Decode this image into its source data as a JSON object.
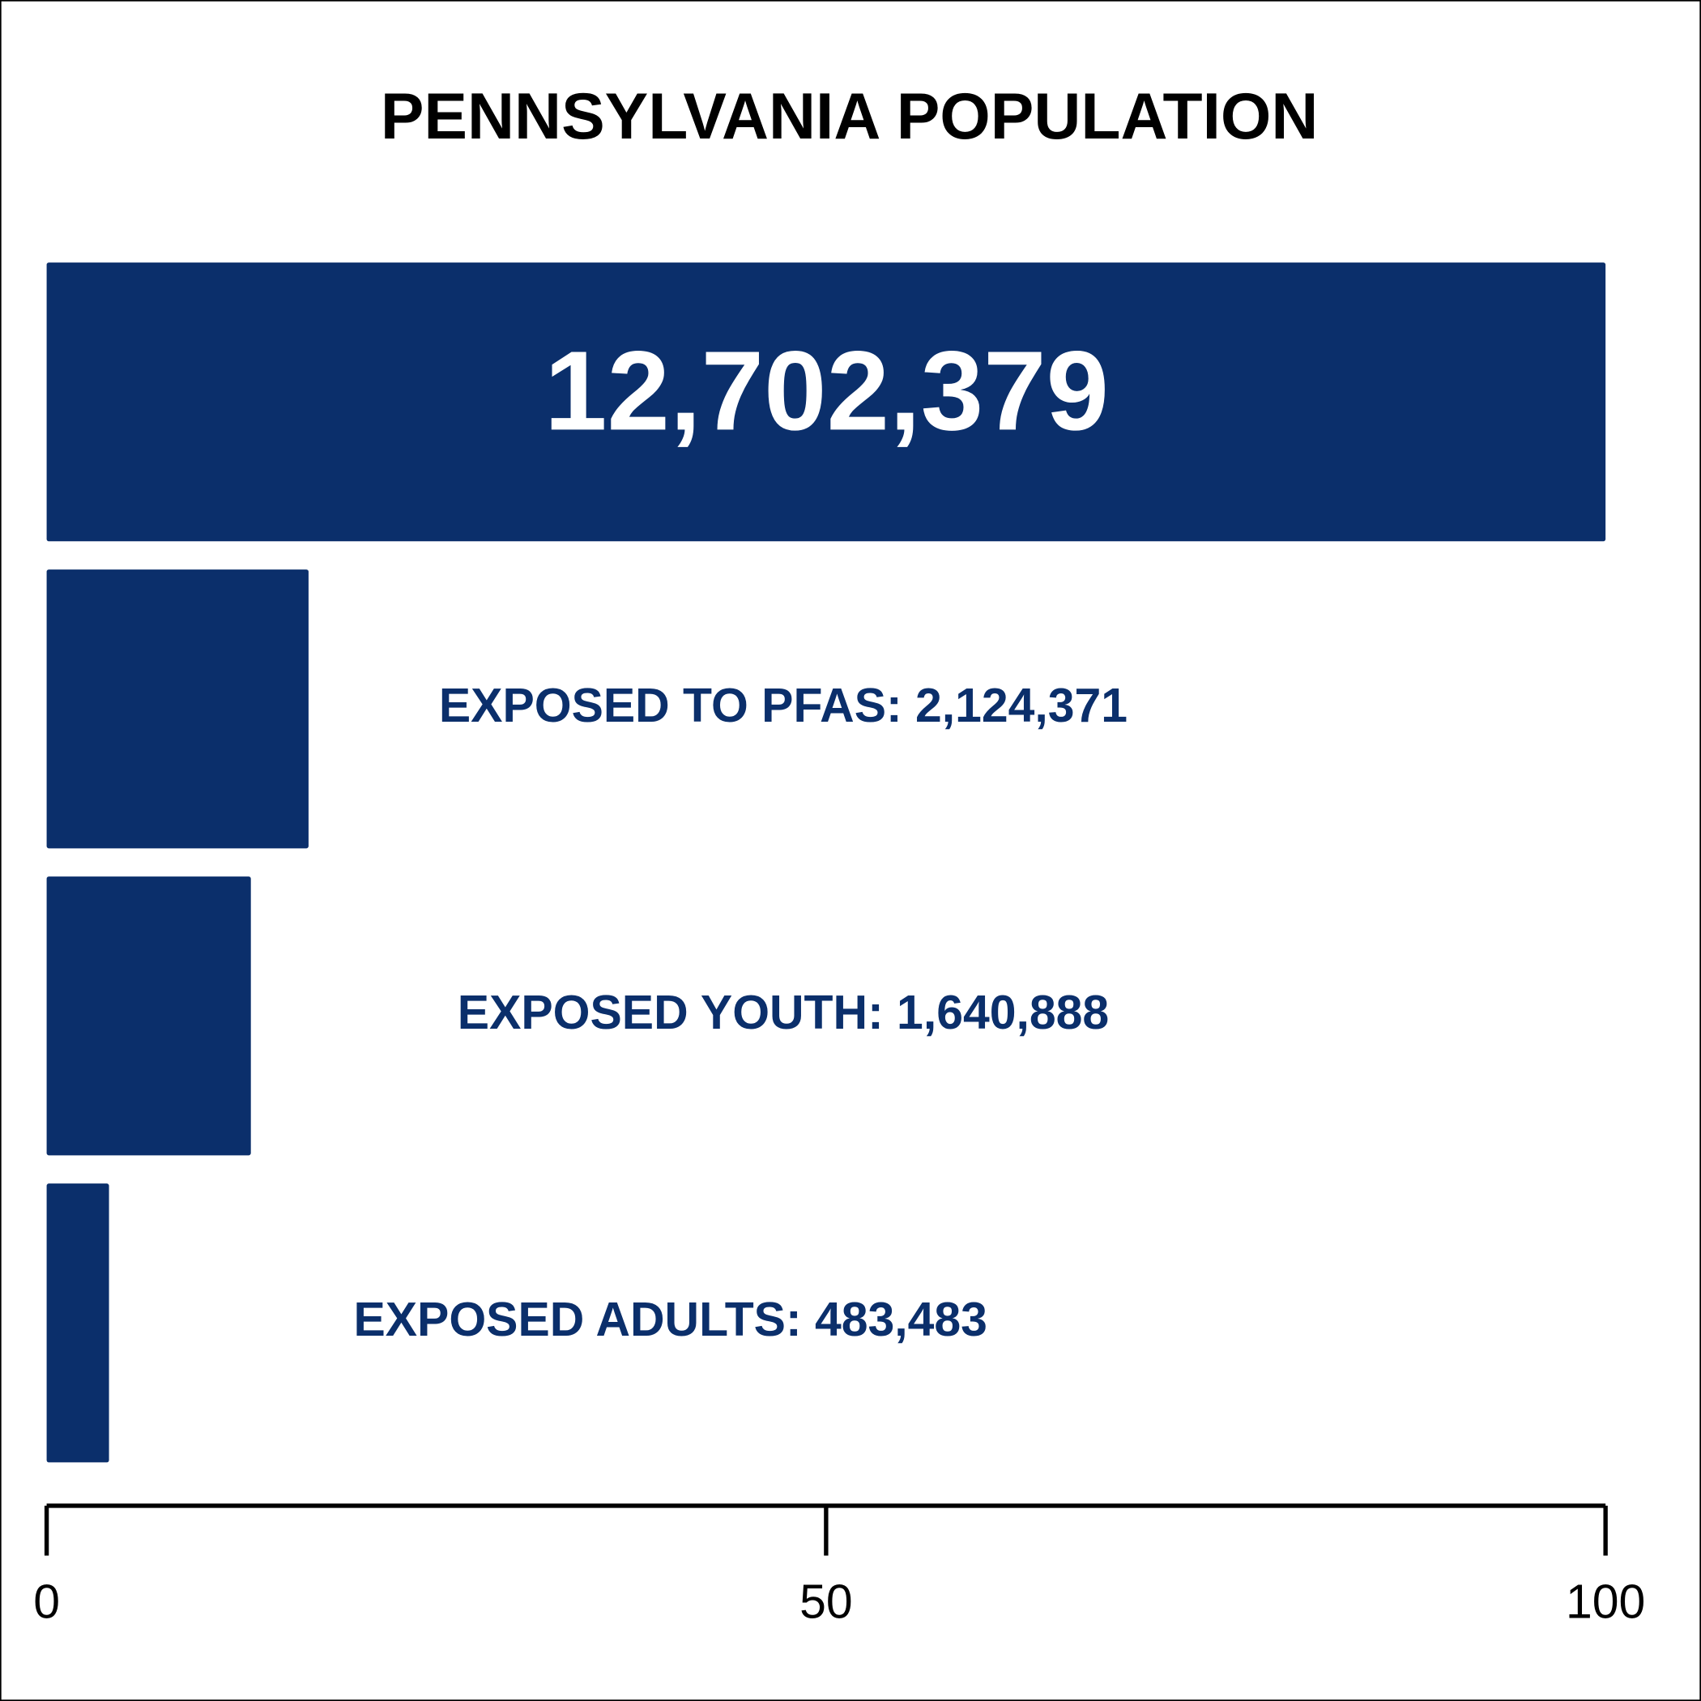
{
  "chart_data": {
    "type": "hbar",
    "title": "PENNSYLVANIA POPULATION",
    "values": [
      100,
      16.8,
      13.1,
      4.0
    ],
    "annotations": [
      "12,702,379",
      "EXPOSED TO PFAS: 2,124,371",
      "EXPOSED YOUTH: 1,640,888",
      "EXPOSED ADULTS: 483,483"
    ],
    "color": "#0b2f6b",
    "xlim": [
      0,
      100
    ],
    "xticks": [
      0,
      50,
      100
    ],
    "grid": false
  }
}
